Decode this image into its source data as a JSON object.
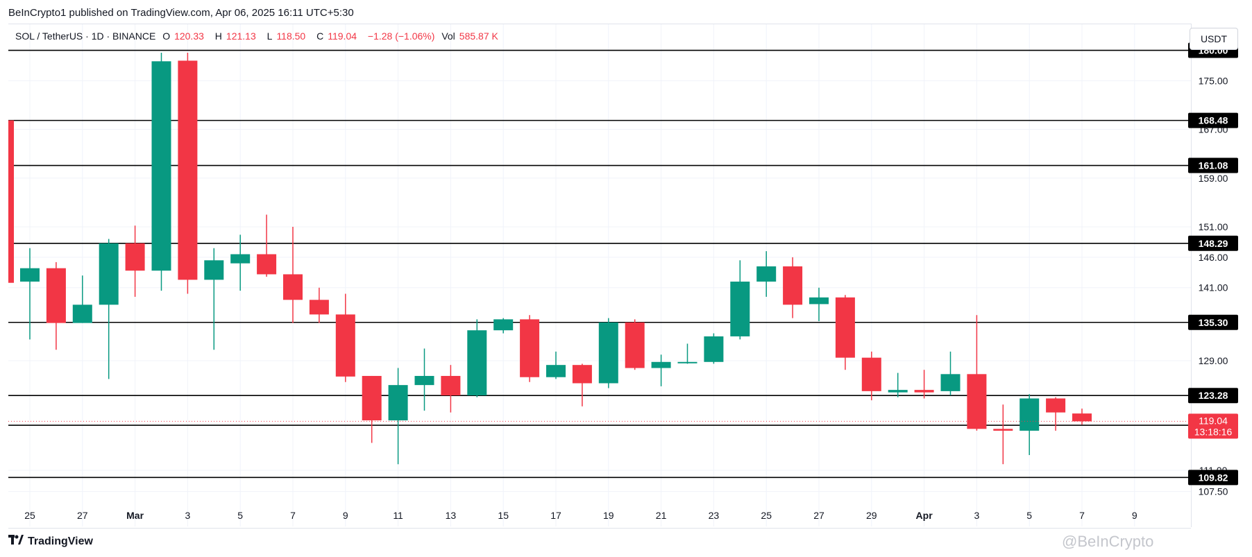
{
  "header": {
    "published": "BeInCrypto1 published on TradingView.com, Apr 06, 2025 16:11 UTC+5:30"
  },
  "legend": {
    "symbol": "SOL / TetherUS · 1D · BINANCE",
    "open_label": "O",
    "open": "120.33",
    "high_label": "H",
    "high": "121.13",
    "low_label": "L",
    "low": "118.50",
    "close_label": "C",
    "close": "119.04",
    "change": "−1.28 (−1.06%)",
    "vol_label": "Vol",
    "vol": "585.87 K"
  },
  "currency_button": "USDT",
  "footer": {
    "brand": "TradingView",
    "watermark": "@BeInCrypto"
  },
  "colors": {
    "up": "#089981",
    "down": "#f23645",
    "level": "#000000",
    "grid": "#f0f3fa",
    "axis_text": "#131722"
  },
  "chart_data": {
    "type": "candlestick",
    "y_axis_ticks": [
      "175.00",
      "167.00",
      "159.00",
      "151.00",
      "146.00",
      "141.00",
      "129.00",
      "111.00",
      "107.50"
    ],
    "x_axis_ticks": [
      "25",
      "27",
      "Mar",
      "3",
      "5",
      "7",
      "9",
      "11",
      "13",
      "15",
      "17",
      "19",
      "21",
      "23",
      "25",
      "27",
      "29",
      "Apr",
      "3",
      "5",
      "7",
      "9"
    ],
    "horizontal_levels": [
      180.0,
      168.48,
      161.08,
      148.29,
      135.3,
      123.28,
      118.4,
      109.82
    ],
    "level_labels": [
      "180.00",
      "168.48",
      "161.08",
      "148.29",
      "135.30",
      "123.28",
      "118.40",
      "109.82"
    ],
    "last_price": {
      "value": 119.04,
      "label": "119.04",
      "countdown": "13:18:16"
    },
    "candles": [
      {
        "d": "Feb 25",
        "o": 142.0,
        "h": 147.5,
        "l": 132.5,
        "c": 144.2
      },
      {
        "d": "Feb 26",
        "o": 144.2,
        "h": 145.2,
        "l": 130.8,
        "c": 135.2
      },
      {
        "d": "Feb 27",
        "o": 135.2,
        "h": 143.0,
        "l": 135.2,
        "c": 138.2
      },
      {
        "d": "Feb 28",
        "o": 138.2,
        "h": 149.0,
        "l": 126.0,
        "c": 148.3
      },
      {
        "d": "Mar 1",
        "o": 148.3,
        "h": 151.2,
        "l": 139.5,
        "c": 143.8
      },
      {
        "d": "Mar 2",
        "o": 143.8,
        "h": 179.6,
        "l": 140.5,
        "c": 178.2
      },
      {
        "d": "Mar 3",
        "o": 178.3,
        "h": 179.6,
        "l": 140.0,
        "c": 142.3
      },
      {
        "d": "Mar 4",
        "o": 142.3,
        "h": 147.5,
        "l": 130.8,
        "c": 145.5
      },
      {
        "d": "Mar 5",
        "o": 145.0,
        "h": 149.7,
        "l": 140.5,
        "c": 146.5
      },
      {
        "d": "Mar 6",
        "o": 146.5,
        "h": 153.0,
        "l": 142.8,
        "c": 143.2
      },
      {
        "d": "Mar 7",
        "o": 143.2,
        "h": 151.0,
        "l": 135.2,
        "c": 139.0
      },
      {
        "d": "Mar 8",
        "o": 139.0,
        "h": 141.0,
        "l": 135.2,
        "c": 136.6
      },
      {
        "d": "Mar 9",
        "o": 136.6,
        "h": 140.0,
        "l": 125.5,
        "c": 126.4
      },
      {
        "d": "Mar 10",
        "o": 126.5,
        "h": 126.5,
        "l": 115.5,
        "c": 119.2
      },
      {
        "d": "Mar 11",
        "o": 119.2,
        "h": 127.8,
        "l": 112.0,
        "c": 125.0
      },
      {
        "d": "Mar 12",
        "o": 125.0,
        "h": 131.0,
        "l": 120.8,
        "c": 126.5
      },
      {
        "d": "Mar 13",
        "o": 126.5,
        "h": 128.3,
        "l": 120.5,
        "c": 123.3
      },
      {
        "d": "Mar 14",
        "o": 123.3,
        "h": 135.8,
        "l": 123.0,
        "c": 134.0
      },
      {
        "d": "Mar 15",
        "o": 134.0,
        "h": 136.0,
        "l": 133.5,
        "c": 135.8
      },
      {
        "d": "Mar 16",
        "o": 135.8,
        "h": 136.5,
        "l": 125.5,
        "c": 126.3
      },
      {
        "d": "Mar 17",
        "o": 126.3,
        "h": 130.5,
        "l": 126.0,
        "c": 128.3
      },
      {
        "d": "Mar 18",
        "o": 128.3,
        "h": 128.5,
        "l": 121.5,
        "c": 125.3
      },
      {
        "d": "Mar 19",
        "o": 125.3,
        "h": 136.0,
        "l": 124.5,
        "c": 135.3
      },
      {
        "d": "Mar 20",
        "o": 135.3,
        "h": 135.8,
        "l": 127.5,
        "c": 127.8
      },
      {
        "d": "Mar 21",
        "o": 127.8,
        "h": 130.0,
        "l": 124.8,
        "c": 128.8
      },
      {
        "d": "Mar 22",
        "o": 128.7,
        "h": 131.8,
        "l": 128.5,
        "c": 128.8
      },
      {
        "d": "Mar 23",
        "o": 128.8,
        "h": 133.5,
        "l": 128.5,
        "c": 133.0
      },
      {
        "d": "Mar 24",
        "o": 133.0,
        "h": 145.5,
        "l": 132.5,
        "c": 142.0
      },
      {
        "d": "Mar 25",
        "o": 142.0,
        "h": 147.0,
        "l": 139.5,
        "c": 144.5
      },
      {
        "d": "Mar 26",
        "o": 144.5,
        "h": 146.0,
        "l": 136.0,
        "c": 138.2
      },
      {
        "d": "Mar 27",
        "o": 138.3,
        "h": 141.0,
        "l": 135.5,
        "c": 139.4
      },
      {
        "d": "Mar 28",
        "o": 139.4,
        "h": 139.8,
        "l": 127.5,
        "c": 129.5
      },
      {
        "d": "Mar 29",
        "o": 129.5,
        "h": 130.5,
        "l": 122.5,
        "c": 124.0
      },
      {
        "d": "Mar 30",
        "o": 123.8,
        "h": 127.0,
        "l": 123.0,
        "c": 124.2
      },
      {
        "d": "Mar 31",
        "o": 124.2,
        "h": 127.5,
        "l": 122.8,
        "c": 123.8
      },
      {
        "d": "Apr 1",
        "o": 124.0,
        "h": 130.5,
        "l": 123.3,
        "c": 126.8
      },
      {
        "d": "Apr 2",
        "o": 126.8,
        "h": 136.5,
        "l": 117.5,
        "c": 117.8
      },
      {
        "d": "Apr 3",
        "o": 117.8,
        "h": 121.8,
        "l": 112.0,
        "c": 117.5
      },
      {
        "d": "Apr 4",
        "o": 117.5,
        "h": 123.5,
        "l": 113.5,
        "c": 122.8
      },
      {
        "d": "Apr 5",
        "o": 122.8,
        "h": 123.0,
        "l": 117.5,
        "c": 120.5
      },
      {
        "d": "Apr 6",
        "o": 120.33,
        "h": 121.13,
        "l": 118.5,
        "c": 119.04
      }
    ],
    "previous_candle_partial": {
      "o": 168.5,
      "h": 168.5,
      "l": 141.8,
      "c": 141.8
    },
    "y_range": [
      104.5,
      182.0
    ]
  }
}
